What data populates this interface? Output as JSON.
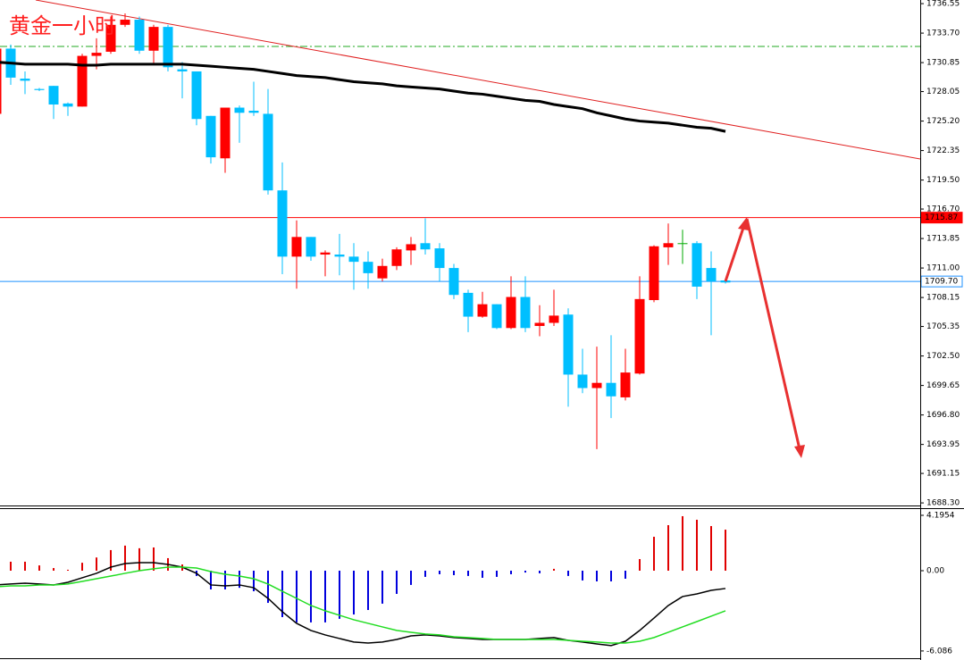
{
  "chart_data": [
    {
      "type": "candlestick",
      "title": "黄金一小时",
      "open": [
        1725.9,
        1732.2,
        1729.3,
        1728.3,
        1728.6,
        1726.9,
        1726.6,
        1731.5,
        1731.9,
        1734.5,
        1735.0,
        1732.0,
        1734.3,
        1730.2,
        1730.0,
        1725.7,
        1721.6,
        1726.5,
        1726.2,
        1725.9,
        1718.5,
        1712.1,
        1714.0,
        1712.3,
        1712.3,
        1712.1,
        1711.6,
        1710.0,
        1711.2,
        1712.7,
        1713.4,
        1712.9,
        1711.0,
        1708.6,
        1706.3,
        1707.5,
        1705.2,
        1708.2,
        1705.4,
        1705.7,
        1706.5,
        1700.7,
        1699.4,
        1699.9,
        1698.5,
        1700.8,
        1707.9,
        1713.0,
        1713.4,
        1713.4,
        1711.0,
        1709.8
      ],
      "high": [
        1732.4,
        1732.6,
        1730.0,
        1728.4,
        1728.6,
        1727.0,
        1731.7,
        1733.2,
        1735.3,
        1735.6,
        1735.3,
        1734.5,
        1734.5,
        1730.9,
        1730.0,
        1725.7,
        1726.5,
        1726.7,
        1729.0,
        1728.3,
        1721.2,
        1715.6,
        1714.0,
        1712.7,
        1714.3,
        1713.4,
        1712.6,
        1711.9,
        1713.0,
        1714.0,
        1715.8,
        1713.4,
        1711.4,
        1708.9,
        1708.7,
        1707.5,
        1710.2,
        1710.2,
        1707.4,
        1708.9,
        1707.1,
        1703.2,
        1703.4,
        1704.5,
        1703.2,
        1710.2,
        1713.2,
        1715.3,
        1714.7,
        1713.6,
        1712.6,
        1710.0
      ],
      "low": [
        1725.7,
        1728.7,
        1727.8,
        1728.1,
        1725.4,
        1725.7,
        1726.6,
        1730.2,
        1731.7,
        1734.3,
        1731.7,
        1730.7,
        1730.0,
        1727.4,
        1724.8,
        1721.1,
        1720.2,
        1723.1,
        1725.7,
        1718.1,
        1710.4,
        1709.0,
        1711.7,
        1710.2,
        1710.3,
        1708.9,
        1709.0,
        1709.7,
        1710.8,
        1711.3,
        1712.3,
        1709.7,
        1708.0,
        1704.8,
        1706.2,
        1705.1,
        1705.1,
        1704.8,
        1704.4,
        1705.4,
        1697.6,
        1698.9,
        1693.5,
        1696.5,
        1698.2,
        1700.7,
        1707.7,
        1711.3,
        1711.4,
        1708.0,
        1704.5,
        1709.5
      ],
      "close": [
        1732.2,
        1729.4,
        1729.1,
        1728.2,
        1726.8,
        1726.6,
        1731.5,
        1731.8,
        1734.5,
        1735.0,
        1732.0,
        1734.3,
        1730.4,
        1730.0,
        1725.4,
        1721.7,
        1726.5,
        1726.0,
        1726.0,
        1718.5,
        1712.1,
        1714.0,
        1712.1,
        1712.5,
        1712.1,
        1711.6,
        1710.5,
        1711.2,
        1712.8,
        1713.3,
        1712.8,
        1711.0,
        1708.4,
        1706.3,
        1707.5,
        1705.2,
        1708.2,
        1705.2,
        1705.7,
        1706.4,
        1700.7,
        1699.4,
        1699.9,
        1698.6,
        1700.9,
        1708.0,
        1713.1,
        1713.4,
        1713.4,
        1709.2,
        1709.7,
        1709.6
      ],
      "up_color": "#ff0000",
      "down_color": "#00bfff",
      "doji_color": "#00aa00",
      "ma": {
        "color": "#000000",
        "values": [
          1730.9,
          1730.8,
          1730.7,
          1730.7,
          1730.7,
          1730.7,
          1730.6,
          1730.6,
          1730.7,
          1730.7,
          1730.7,
          1730.7,
          1730.7,
          1730.7,
          1730.6,
          1730.5,
          1730.4,
          1730.3,
          1730.2,
          1730.0,
          1729.8,
          1729.6,
          1729.5,
          1729.4,
          1729.2,
          1729.0,
          1728.9,
          1728.8,
          1728.6,
          1728.5,
          1728.4,
          1728.3,
          1728.1,
          1727.9,
          1727.8,
          1727.6,
          1727.4,
          1727.2,
          1727.1,
          1726.8,
          1726.6,
          1726.4,
          1726.0,
          1725.7,
          1725.4,
          1725.2,
          1725.1,
          1725.0,
          1724.8,
          1724.6,
          1724.5,
          1724.2
        ]
      },
      "price_lines": [
        {
          "value": 1715.87,
          "color": "#ff0000"
        },
        {
          "value": 1709.7,
          "label": "1709.70",
          "color": "#1e90ff"
        }
      ],
      "ylim": [
        1688.05,
        1736.9
      ],
      "yticks": [
        1736.55,
        {
          "value": 1733.7,
          "label": "1733.70"
        },
        1730.85,
        1728.05,
        {
          "value": 1725.2,
          "label": "1725.20"
        },
        1722.35,
        {
          "value": 1719.5,
          "label": "1719.50"
        },
        {
          "value": 1716.7,
          "label": "1716.70"
        },
        1713.85,
        {
          "value": 1711,
          "label": "1711.00"
        },
        1708.15,
        1705.35,
        {
          "value": 1702.5,
          "label": "1702.50"
        },
        1699.65,
        {
          "value": 1696.8,
          "label": "1696.80"
        },
        1693.95,
        1691.15,
        {
          "value": 1688.3,
          "label": "1688.30"
        }
      ]
    },
    {
      "type": "macd",
      "histogram": [
        0.7,
        0.68,
        0.68,
        0.4,
        0.2,
        0.07,
        0.6,
        1.0,
        1.56,
        1.9,
        1.7,
        1.76,
        0.95,
        0.47,
        -0.4,
        -1.42,
        -1.42,
        -1.3,
        -1.56,
        -2.44,
        -3.52,
        -3.92,
        -3.92,
        -3.92,
        -3.65,
        -3.32,
        -2.98,
        -2.5,
        -1.76,
        -1.08,
        -0.47,
        -0.27,
        -0.34,
        -0.4,
        -0.54,
        -0.47,
        -0.27,
        -0.14,
        -0.2,
        0.14,
        -0.4,
        -0.74,
        -0.81,
        -0.81,
        -0.61,
        0.88,
        2.57,
        3.45,
        4.13,
        3.86,
        3.38,
        3.11
      ],
      "up_color": "#e00000",
      "down_color": "#0000dd",
      "series": [
        {
          "color": "#000000",
          "values": [
            -1.08,
            -1.01,
            -0.95,
            -1.01,
            -1.08,
            -0.88,
            -0.54,
            -0.2,
            0.27,
            0.54,
            0.61,
            0.61,
            0.47,
            0.27,
            -0.2,
            -1.08,
            -1.15,
            -1.08,
            -1.29,
            -2.1,
            -3.11,
            -3.99,
            -4.53,
            -4.87,
            -5.14,
            -5.41,
            -5.48,
            -5.41,
            -5.21,
            -4.94,
            -4.87,
            -4.94,
            -5.07,
            -5.14,
            -5.21,
            -5.21,
            -5.21,
            -5.21,
            -5.14,
            -5.07,
            -5.28,
            -5.41,
            -5.55,
            -5.68,
            -5.35,
            -4.53,
            -3.59,
            -2.64,
            -1.96,
            -1.76,
            -1.49,
            -1.35
          ]
        },
        {
          "color": "#22dd22",
          "values": [
            -1.22,
            -1.15,
            -1.15,
            -1.08,
            -1.08,
            -1.01,
            -0.81,
            -0.61,
            -0.41,
            -0.2,
            0,
            0.14,
            0.27,
            0.27,
            0.2,
            -0.07,
            -0.27,
            -0.41,
            -0.61,
            -1.01,
            -1.56,
            -2.1,
            -2.64,
            -3.04,
            -3.38,
            -3.72,
            -3.99,
            -4.26,
            -4.53,
            -4.67,
            -4.8,
            -4.87,
            -5.01,
            -5.07,
            -5.14,
            -5.21,
            -5.21,
            -5.21,
            -5.21,
            -5.21,
            -5.28,
            -5.35,
            -5.41,
            -5.48,
            -5.48,
            -5.35,
            -5.07,
            -4.67,
            -4.26,
            -3.86,
            -3.45,
            -3.04
          ]
        }
      ],
      "ylim": [
        -6.77,
        4.67
      ],
      "yticks": [
        4.1954,
        {
          "value": 0,
          "label": "0.00"
        },
        -6.086
      ]
    }
  ]
}
